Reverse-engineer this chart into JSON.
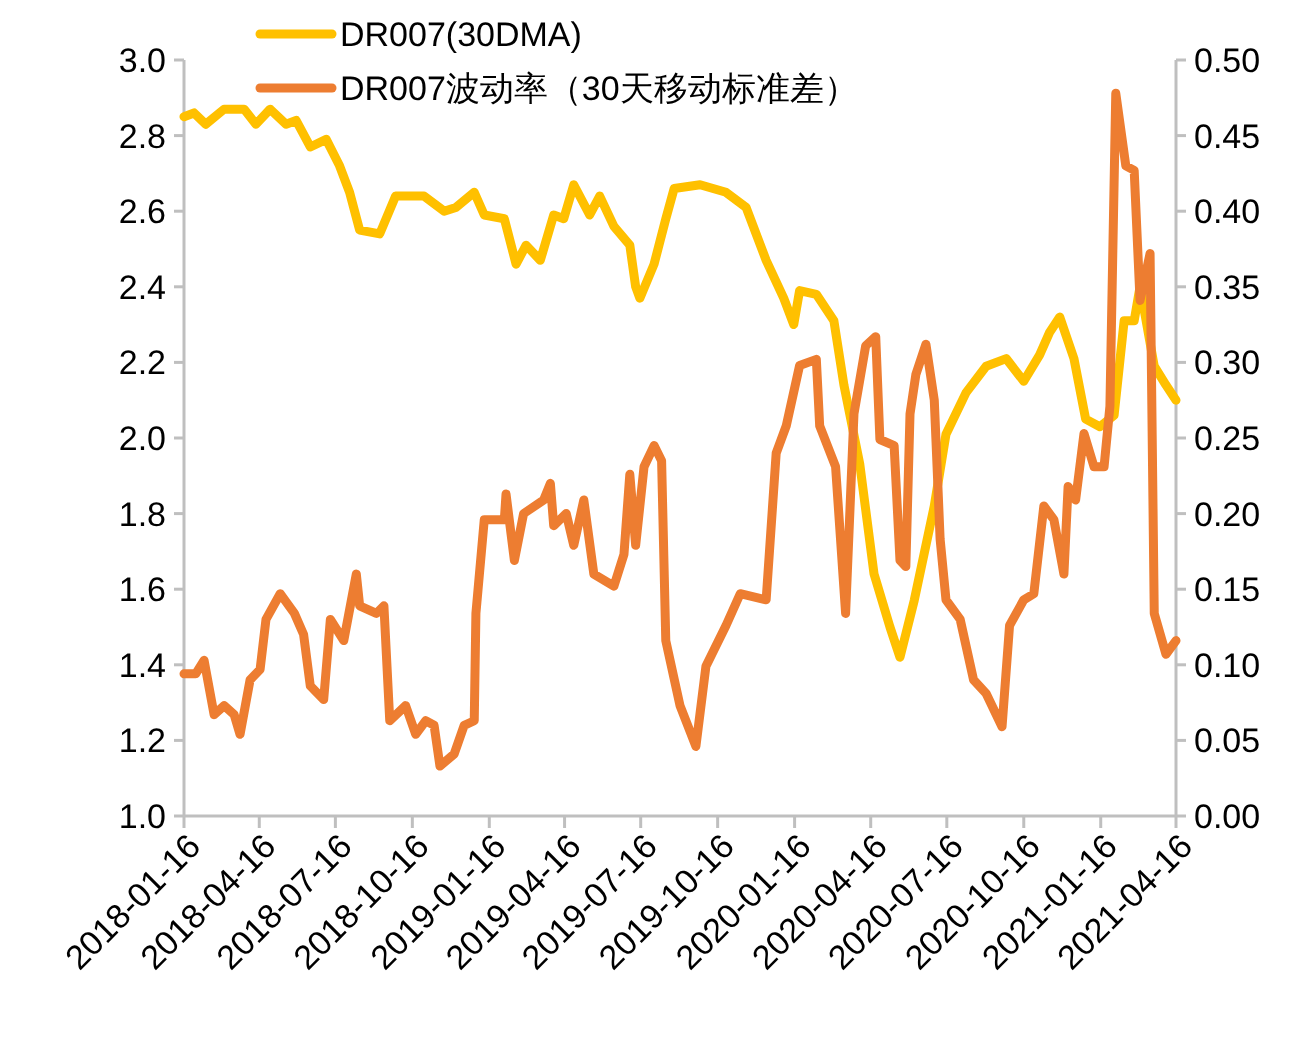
{
  "chart_data": {
    "type": "line",
    "legend": "top",
    "grid": false,
    "xlim": [
      "2018-01-16",
      "2021-04-16"
    ],
    "xticks": [
      "2018-01-16",
      "2018-04-16",
      "2018-07-16",
      "2018-10-16",
      "2019-01-16",
      "2019-04-16",
      "2019-07-16",
      "2019-10-16",
      "2020-01-16",
      "2020-04-16",
      "2020-07-16",
      "2020-10-16",
      "2021-01-16",
      "2021-04-16"
    ],
    "ylim": [
      1,
      3
    ],
    "yticks": [
      {
        "value": 1,
        "label": "1.0"
      },
      {
        "value": 1.2,
        "label": "1.2"
      },
      {
        "value": 1.4,
        "label": "1.4"
      },
      {
        "value": 1.6,
        "label": "1.6"
      },
      {
        "value": 1.8,
        "label": "1.8"
      },
      {
        "value": 2,
        "label": "2.0"
      },
      {
        "value": 2.2,
        "label": "2.2"
      },
      {
        "value": 2.4,
        "label": "2.4"
      },
      {
        "value": 2.6,
        "label": "2.6"
      },
      {
        "value": 2.8,
        "label": "2.8"
      },
      {
        "value": 3,
        "label": "3.0"
      }
    ],
    "y2lim": [
      0,
      0.5
    ],
    "y2ticks": [
      {
        "value": 0,
        "label": "0.00"
      },
      {
        "value": 0.05,
        "label": "0.05"
      },
      {
        "value": 0.1,
        "label": "0.10"
      },
      {
        "value": 0.15,
        "label": "0.15"
      },
      {
        "value": 0.2,
        "label": "0.20"
      },
      {
        "value": 0.25,
        "label": "0.25"
      },
      {
        "value": 0.3,
        "label": "0.30"
      },
      {
        "value": 0.35,
        "label": "0.35"
      },
      {
        "value": 0.4,
        "label": "0.40"
      },
      {
        "value": 0.45,
        "label": "0.45"
      },
      {
        "value": 0.5,
        "label": "0.50"
      }
    ],
    "series": [
      {
        "name": "DR007(30DMA)",
        "color": "#ffc000",
        "x": [
          "2018-01-16",
          "2018-01-28",
          "2018-02-11",
          "2018-03-05",
          "2018-03-29",
          "2018-04-12",
          "2018-04-29",
          "2018-05-18",
          "2018-05-30",
          "2018-06-16",
          "2018-07-05",
          "2018-07-21",
          "2018-08-02",
          "2018-08-14",
          "2018-09-07",
          "2018-09-26",
          "2018-10-30",
          "2018-11-23",
          "2018-12-07",
          "2018-12-29",
          "2019-01-10",
          "2019-02-03",
          "2019-02-17",
          "2019-03-01",
          "2019-03-18",
          "2019-04-03",
          "2019-04-15",
          "2019-04-27",
          "2019-05-16",
          "2019-05-28",
          "2019-06-14",
          "2019-07-03",
          "2019-07-10",
          "2019-07-15",
          "2019-08-01",
          "2019-08-15",
          "2019-08-25",
          "2019-09-25",
          "2019-10-26",
          "2019-11-19",
          "2019-12-13",
          "2020-01-03",
          "2020-01-15",
          "2020-01-22",
          "2020-02-11",
          "2020-03-03",
          "2020-03-15",
          "2020-04-03",
          "2020-04-20",
          "2020-05-09",
          "2020-05-21",
          "2020-06-07",
          "2020-07-01",
          "2020-07-15",
          "2020-08-08",
          "2020-09-01",
          "2020-09-25",
          "2020-10-16",
          "2020-11-04",
          "2020-11-16",
          "2020-11-28",
          "2020-12-15",
          "2020-12-29",
          "2021-01-15",
          "2021-02-01",
          "2021-02-13",
          "2021-02-25",
          "2021-03-04",
          "2021-03-21",
          "2021-04-04",
          "2021-04-16"
        ],
        "values": [
          2.85,
          2.86,
          2.83,
          2.87,
          2.87,
          2.83,
          2.87,
          2.83,
          2.84,
          2.77,
          2.79,
          2.72,
          2.65,
          2.55,
          2.54,
          2.64,
          2.64,
          2.6,
          2.61,
          2.65,
          2.59,
          2.58,
          2.46,
          2.51,
          2.47,
          2.59,
          2.58,
          2.67,
          2.59,
          2.64,
          2.56,
          2.51,
          2.4,
          2.37,
          2.46,
          2.58,
          2.66,
          2.67,
          2.65,
          2.61,
          2.47,
          2.37,
          2.3,
          2.39,
          2.38,
          2.31,
          2.14,
          1.93,
          1.64,
          1.5,
          1.42,
          1.57,
          1.82,
          2.01,
          2.12,
          2.19,
          2.21,
          2.15,
          2.22,
          2.28,
          2.32,
          2.21,
          2.05,
          2.03,
          2.06,
          2.31,
          2.31,
          2.4,
          2.19,
          2.14,
          2.1
        ]
      },
      {
        "name": "DR007波动率（30天移动标准差）",
        "color": "#ed7d31",
        "axis": "y2",
        "x": [
          "2018-01-16",
          "2018-01-30",
          "2018-02-09",
          "2018-02-21",
          "2018-03-05",
          "2018-03-17",
          "2018-03-24",
          "2018-04-05",
          "2018-04-17",
          "2018-04-24",
          "2018-05-11",
          "2018-05-28",
          "2018-06-08",
          "2018-06-16",
          "2018-07-02",
          "2018-07-10",
          "2018-07-26",
          "2018-08-10",
          "2018-08-14",
          "2018-09-03",
          "2018-09-12",
          "2018-09-19",
          "2018-10-08",
          "2018-10-20",
          "2018-11-01",
          "2018-11-11",
          "2018-11-18",
          "2018-12-05",
          "2018-12-17",
          "2018-12-29",
          "2018-12-31",
          "2019-01-10",
          "2019-02-03",
          "2019-02-05",
          "2019-02-15",
          "2019-02-26",
          "2019-03-22",
          "2019-03-30",
          "2019-04-03",
          "2019-04-18",
          "2019-04-27",
          "2019-05-09",
          "2019-05-21",
          "2019-06-14",
          "2019-06-26",
          "2019-07-03",
          "2019-07-10",
          "2019-07-20",
          "2019-08-01",
          "2019-08-10",
          "2019-08-15",
          "2019-09-01",
          "2019-09-20",
          "2019-10-02",
          "2019-10-26",
          "2019-11-12",
          "2019-12-13",
          "2019-12-25",
          "2020-01-06",
          "2020-01-22",
          "2020-02-11",
          "2020-02-15",
          "2020-03-05",
          "2020-03-17",
          "2020-03-27",
          "2020-04-10",
          "2020-04-22",
          "2020-04-27",
          "2020-05-14",
          "2020-05-21",
          "2020-05-28",
          "2020-06-02",
          "2020-06-09",
          "2020-06-21",
          "2020-07-01",
          "2020-07-08",
          "2020-07-15",
          "2020-08-01",
          "2020-08-17",
          "2020-09-01",
          "2020-09-20",
          "2020-09-29",
          "2020-10-16",
          "2020-10-28",
          "2020-11-09",
          "2020-11-21",
          "2020-12-03",
          "2020-12-08",
          "2020-12-17",
          "2020-12-27",
          "2021-01-08",
          "2021-01-20",
          "2021-01-27",
          "2021-02-03",
          "2021-02-15",
          "2021-02-25",
          "2021-03-04",
          "2021-03-16",
          "2021-03-21",
          "2021-04-04",
          "2021-04-16"
        ],
        "values": [
          0.094,
          0.094,
          0.103,
          0.067,
          0.073,
          0.067,
          0.054,
          0.09,
          0.097,
          0.13,
          0.147,
          0.134,
          0.12,
          0.086,
          0.077,
          0.13,
          0.116,
          0.16,
          0.139,
          0.134,
          0.139,
          0.063,
          0.073,
          0.054,
          0.063,
          0.06,
          0.033,
          0.041,
          0.06,
          0.063,
          0.134,
          0.196,
          0.196,
          0.213,
          0.169,
          0.2,
          0.209,
          0.22,
          0.192,
          0.2,
          0.179,
          0.209,
          0.16,
          0.152,
          0.173,
          0.226,
          0.179,
          0.231,
          0.245,
          0.235,
          0.116,
          0.073,
          0.046,
          0.099,
          0.126,
          0.147,
          0.143,
          0.24,
          0.258,
          0.298,
          0.302,
          0.258,
          0.231,
          0.134,
          0.266,
          0.311,
          0.317,
          0.249,
          0.245,
          0.169,
          0.165,
          0.266,
          0.292,
          0.312,
          0.275,
          0.183,
          0.143,
          0.13,
          0.09,
          0.081,
          0.059,
          0.126,
          0.143,
          0.147,
          0.205,
          0.196,
          0.16,
          0.218,
          0.209,
          0.253,
          0.231,
          0.231,
          0.271,
          0.478,
          0.43,
          0.427,
          0.341,
          0.372,
          0.134,
          0.107,
          0.116
        ]
      }
    ]
  }
}
